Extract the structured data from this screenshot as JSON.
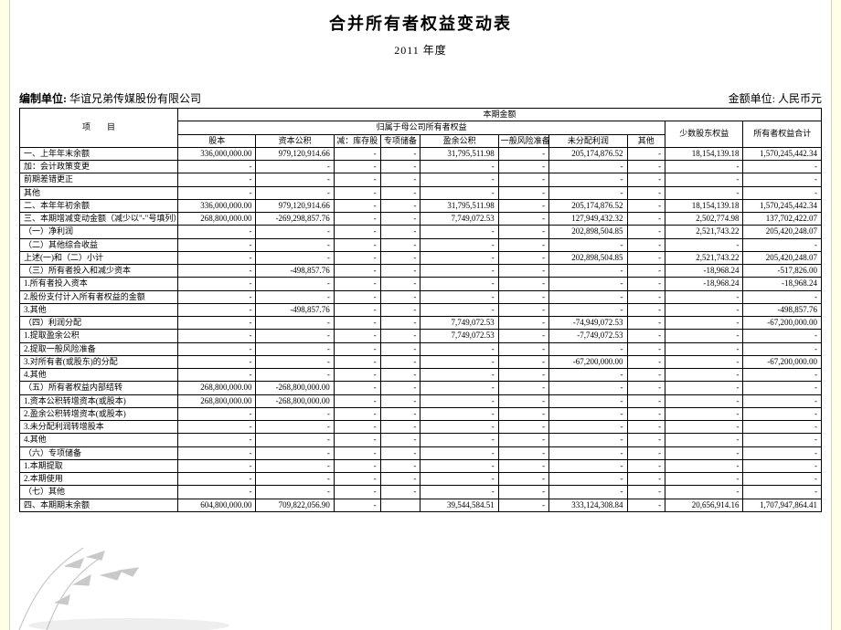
{
  "title": "合并所有者权益变动表",
  "subtitle": "2011 年度",
  "org_label": "编制单位:",
  "org_name": "华谊兄弟传媒股份有限公司",
  "unit_label": "金额单位: 人民币元",
  "headers": {
    "item": "项　　目",
    "current": "本期金额",
    "parent_equity": "归属于母公司所有者权益",
    "cols": [
      "股本",
      "资本公积",
      "减：库存股",
      "专项储备",
      "盈余公积",
      "一般风险准备",
      "未分配利润",
      "其他",
      "少数股东权益",
      "所有者权益合计"
    ]
  },
  "rows": [
    {
      "label": "一、上年年末余额",
      "v": [
        "336,000,000.00",
        "979,120,914.66",
        "-",
        "-",
        "31,795,511.98",
        "-",
        "205,174,876.52",
        "-",
        "18,154,139.18",
        "1,570,245,442.34"
      ]
    },
    {
      "label": "加：会计政策变更",
      "v": [
        "-",
        "-",
        "-",
        "-",
        "-",
        "-",
        "-",
        "-",
        "-",
        "-"
      ]
    },
    {
      "label": "前期差错更正",
      "v": [
        "-",
        "-",
        "-",
        "-",
        "-",
        "-",
        "-",
        "-",
        "-",
        "-"
      ]
    },
    {
      "label": "其他",
      "v": [
        "-",
        "-",
        "-",
        "-",
        "-",
        "-",
        "-",
        "-",
        "-",
        "-"
      ]
    },
    {
      "label": "二、本年年初余额",
      "v": [
        "336,000,000.00",
        "979,120,914.66",
        "-",
        "-",
        "31,795,511.98",
        "-",
        "205,174,876.52",
        "-",
        "18,154,139.18",
        "1,570,245,442.34"
      ]
    },
    {
      "label": "三、本期增减变动金额（减少以\"-\"号填列）",
      "v": [
        "268,800,000.00",
        "-269,298,857.76",
        "-",
        "-",
        "7,749,072.53",
        "-",
        "127,949,432.32",
        "-",
        "2,502,774.98",
        "137,702,422.07"
      ]
    },
    {
      "label": "（一）净利润",
      "v": [
        "-",
        "-",
        "-",
        "-",
        "-",
        "-",
        "202,898,504.85",
        "-",
        "2,521,743.22",
        "205,420,248.07"
      ]
    },
    {
      "label": "（二）其他综合收益",
      "v": [
        "-",
        "-",
        "-",
        "-",
        "-",
        "-",
        "-",
        "-",
        "-",
        "-"
      ]
    },
    {
      "label": "上述(一)和（二）小计",
      "v": [
        "-",
        "-",
        "-",
        "-",
        "-",
        "-",
        "202,898,504.85",
        "-",
        "2,521,743.22",
        "205,420,248.07"
      ]
    },
    {
      "label": "（三）所有者投入和减少资本",
      "v": [
        "-",
        "-498,857.76",
        "-",
        "-",
        "-",
        "-",
        "-",
        "-",
        "-18,968.24",
        "-517,826.00"
      ]
    },
    {
      "label": "1.所有者投入资本",
      "v": [
        "-",
        "-",
        "-",
        "-",
        "-",
        "-",
        "-",
        "-",
        "-18,968.24",
        "-18,968.24"
      ]
    },
    {
      "label": "2.股份支付计入所有者权益的金额",
      "v": [
        "-",
        "-",
        "-",
        "-",
        "-",
        "-",
        "-",
        "-",
        "-",
        "-"
      ]
    },
    {
      "label": "3.其他",
      "v": [
        "-",
        "-498,857.76",
        "-",
        "-",
        "-",
        "-",
        "-",
        "-",
        "-",
        "-498,857.76"
      ]
    },
    {
      "label": "（四）利润分配",
      "v": [
        "-",
        "-",
        "-",
        "-",
        "7,749,072.53",
        "-",
        "-74,949,072.53",
        "-",
        "-",
        "-67,200,000.00"
      ]
    },
    {
      "label": "1.提取盈余公积",
      "v": [
        "-",
        "-",
        "-",
        "-",
        "7,749,072.53",
        "-",
        "-7,749,072.53",
        "-",
        "-",
        "-"
      ]
    },
    {
      "label": "2.提取一般风险准备",
      "v": [
        "-",
        "-",
        "-",
        "-",
        "-",
        "-",
        "-",
        "-",
        "-",
        "-"
      ]
    },
    {
      "label": "3.对所有者(或股东)的分配",
      "v": [
        "-",
        "-",
        "-",
        "-",
        "-",
        "-",
        "-67,200,000.00",
        "-",
        "-",
        "-67,200,000.00"
      ]
    },
    {
      "label": "4.其他",
      "v": [
        "-",
        "-",
        "-",
        "-",
        "-",
        "-",
        "-",
        "-",
        "-",
        "-"
      ]
    },
    {
      "label": "（五）所有者权益内部结转",
      "v": [
        "268,800,000.00",
        "-268,800,000.00",
        "-",
        "-",
        "-",
        "-",
        "-",
        "-",
        "-",
        "-"
      ]
    },
    {
      "label": "1.资本公积转增资本(或股本)",
      "v": [
        "268,800,000.00",
        "-268,800,000.00",
        "-",
        "-",
        "-",
        "-",
        "-",
        "-",
        "-",
        "-"
      ]
    },
    {
      "label": "2.盈余公积转增资本(或股本)",
      "v": [
        "-",
        "-",
        "-",
        "-",
        "-",
        "-",
        "-",
        "-",
        "-",
        "-"
      ]
    },
    {
      "label": "3.未分配利润转增股本",
      "v": [
        "-",
        "-",
        "-",
        "-",
        "-",
        "-",
        "-",
        "-",
        "-",
        "-"
      ]
    },
    {
      "label": "4.其他",
      "v": [
        "-",
        "-",
        "-",
        "-",
        "-",
        "-",
        "-",
        "-",
        "-",
        "-"
      ]
    },
    {
      "label": "（六）专项储备",
      "v": [
        "-",
        "-",
        "-",
        "-",
        "-",
        "-",
        "-",
        "-",
        "-",
        "-"
      ]
    },
    {
      "label": "1.本期提取",
      "v": [
        "-",
        "-",
        "-",
        "-",
        "-",
        "-",
        "-",
        "-",
        "-",
        "-"
      ]
    },
    {
      "label": "2.本期使用",
      "v": [
        "-",
        "-",
        "-",
        "-",
        "-",
        "-",
        "-",
        "-",
        "-",
        "-"
      ]
    },
    {
      "label": "（七）其他",
      "v": [
        "-",
        "-",
        "-",
        "-",
        "-",
        "-",
        "-",
        "-",
        "-",
        "-"
      ]
    },
    {
      "label": "四、本期期末余额",
      "v": [
        "604,800,000.00",
        "709,822,056.90",
        "-",
        "",
        "39,544,584.51",
        "-",
        "333,124,308.84",
        "-",
        "20,656,914.16",
        "1,707,947,864.41"
      ]
    }
  ],
  "style": {
    "page_bg": "#ffffe6",
    "sheet_bg": "#ffffff",
    "border_color": "#000000",
    "title_fontsize": 18,
    "cell_fontsize": 9
  }
}
